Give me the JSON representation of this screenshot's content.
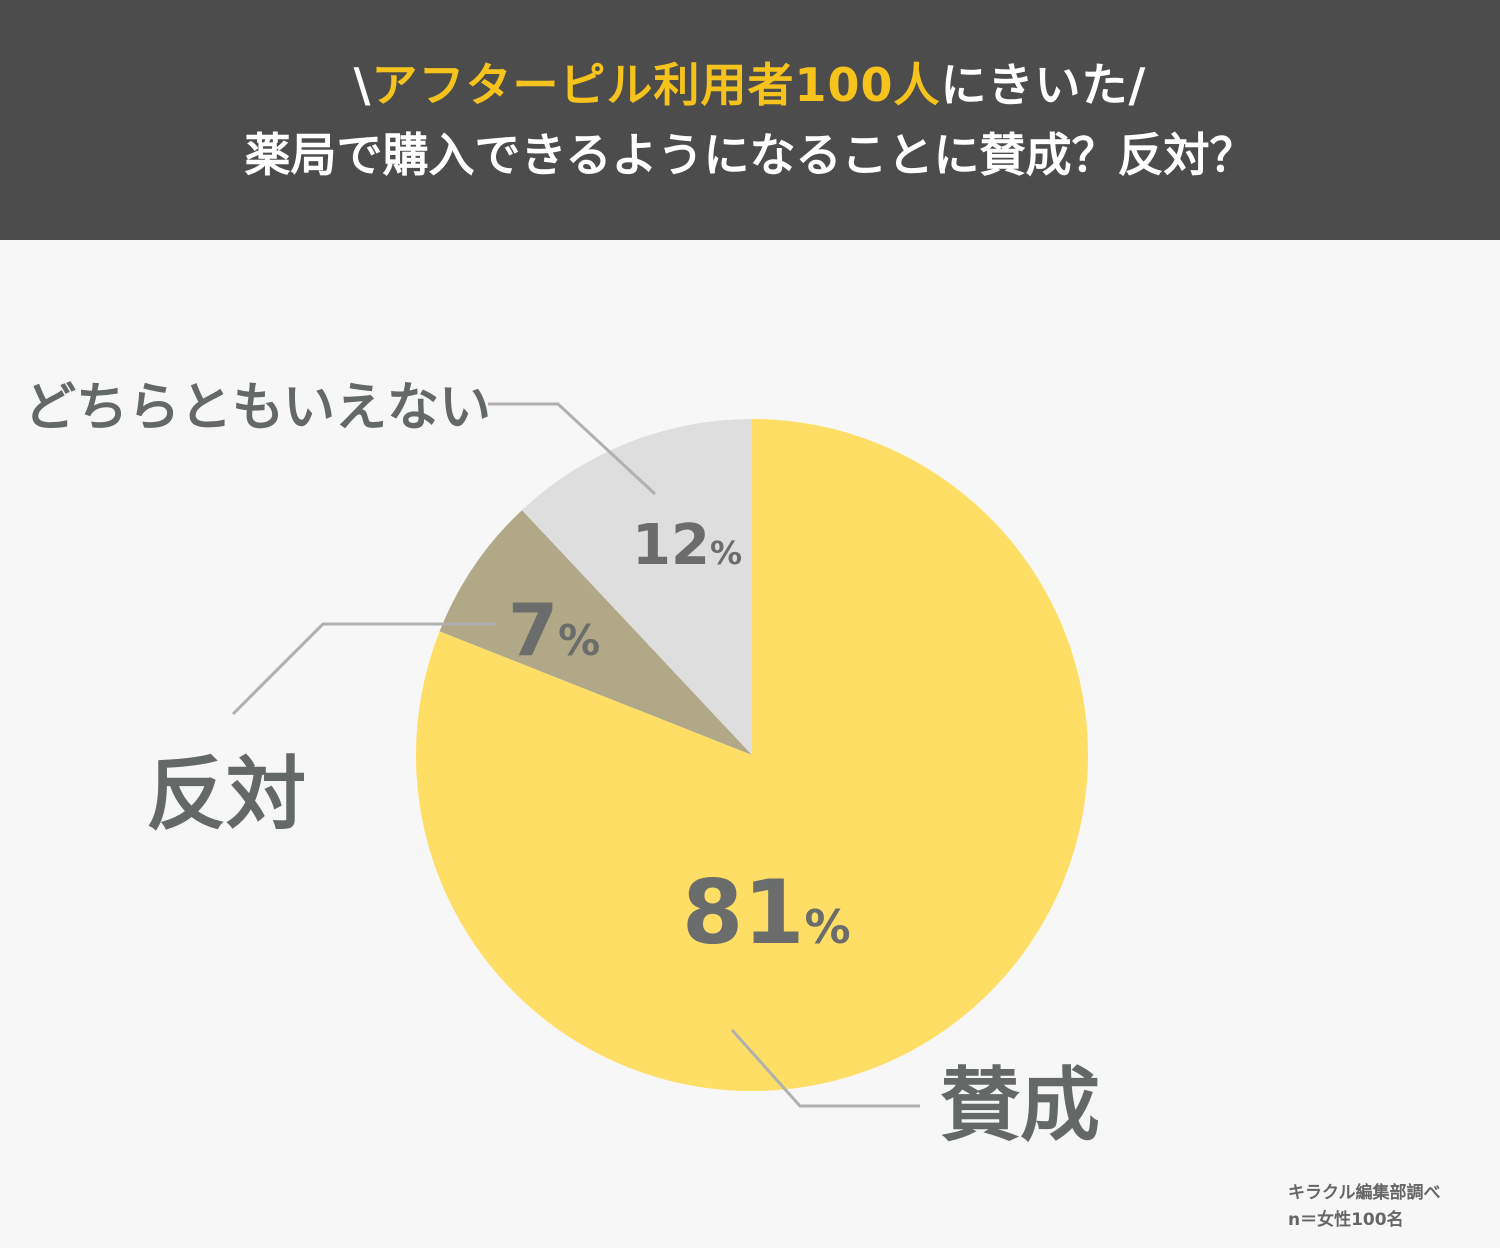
{
  "header": {
    "title_prefix": "\\",
    "title_highlight": "アフターピル利用者100人",
    "title_suffix": "にきいた/",
    "subtitle": "薬局で購入できるようになることに賛成？反対？"
  },
  "chart_data": {
    "type": "pie",
    "slices": [
      {
        "label": "賛成",
        "value": 81,
        "display": "81",
        "unit": "%",
        "color": "#ffde66"
      },
      {
        "label": "反対",
        "value": 7,
        "display": "7",
        "unit": "%",
        "color": "#b0a886"
      },
      {
        "label": "どちらともいえない",
        "value": 12,
        "display": "12",
        "unit": "%",
        "color": "#dedede"
      }
    ],
    "start": "12 o'clock, clockwise"
  },
  "source": {
    "line1": "キラクル編集部調べ",
    "line2": "n＝女性100名"
  }
}
